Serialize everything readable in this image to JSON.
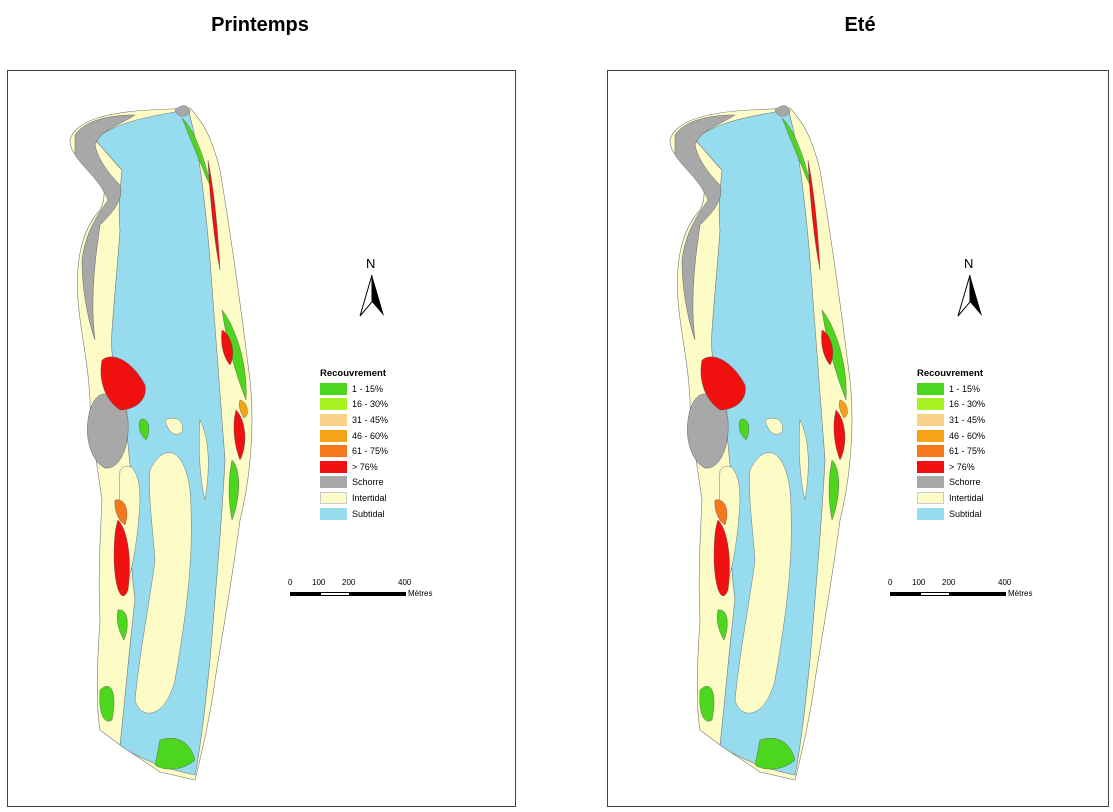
{
  "maps": [
    {
      "title": "Printemps"
    },
    {
      "title": "Eté"
    }
  ],
  "north": {
    "label": "N"
  },
  "legend": {
    "title": "Recouvrement",
    "items": [
      {
        "label": "1 - 15%",
        "color": "#4cd61e"
      },
      {
        "label": "16 - 30%",
        "color": "#a8f224"
      },
      {
        "label": "31 - 45%",
        "color": "#fbd28c"
      },
      {
        "label": "46 - 60%",
        "color": "#f6a318"
      },
      {
        "label": "61 - 75%",
        "color": "#f5781a"
      },
      {
        "label": "> 76%",
        "color": "#f01010"
      },
      {
        "label": "Schorre",
        "color": "#a8a8a8"
      },
      {
        "label": "Intertidal",
        "color": "#fdfbc6"
      },
      {
        "label": "Subtidal",
        "color": "#97dbee"
      }
    ]
  },
  "scale": {
    "ticks": [
      "0",
      "100",
      "200",
      "400"
    ],
    "unit": "Mètres"
  }
}
